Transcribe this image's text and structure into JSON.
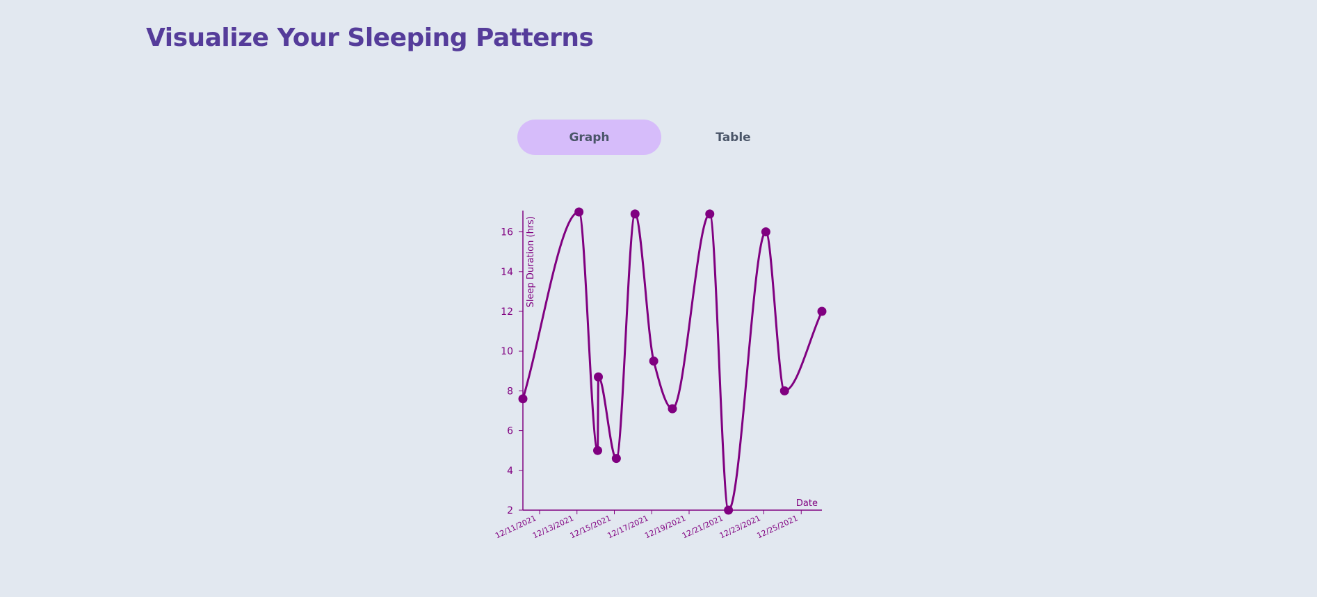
{
  "header": {
    "title": "Visualize Your Sleeping Patterns"
  },
  "tabs": [
    {
      "label": "Graph",
      "active": true
    },
    {
      "label": "Table",
      "active": false
    }
  ],
  "colors": {
    "accent": "#553c9a",
    "tab_active_bg": "#d6bcfa",
    "series": "#800080",
    "background": "#e2e8f0"
  },
  "chart_data": {
    "type": "line",
    "xlabel": "Date",
    "ylabel": "Sleep Duration (hrs)",
    "ylim": [
      2,
      17
    ],
    "xlim": [
      "12/11/2021",
      "12/27/2021"
    ],
    "yticks": [
      2,
      4,
      6,
      8,
      10,
      12,
      14,
      16
    ],
    "xticks": [
      "12/11/2021",
      "12/13/2021",
      "12/15/2021",
      "12/17/2021",
      "12/19/2021",
      "12/21/2021",
      "12/23/2021",
      "12/25/2021"
    ],
    "grid": false,
    "legend": "none",
    "curve": "smooth",
    "points": [
      {
        "x": "12/11/2021",
        "y": 7.6
      },
      {
        "x": "12/14/2021",
        "y": 17.0
      },
      {
        "x": "12/15/2021",
        "y": 5.0
      },
      {
        "x": "12/15/2021",
        "y": 8.7
      },
      {
        "x": "12/16/2021",
        "y": 4.6
      },
      {
        "x": "12/17/2021",
        "y": 16.9
      },
      {
        "x": "12/18/2021",
        "y": 9.5
      },
      {
        "x": "12/19/2021",
        "y": 7.1
      },
      {
        "x": "12/21/2021",
        "y": 16.9
      },
      {
        "x": "12/22/2021",
        "y": 2.0
      },
      {
        "x": "12/24/2021",
        "y": 16.0
      },
      {
        "x": "12/25/2021",
        "y": 8.0
      },
      {
        "x": "12/27/2021",
        "y": 12.0
      }
    ]
  }
}
